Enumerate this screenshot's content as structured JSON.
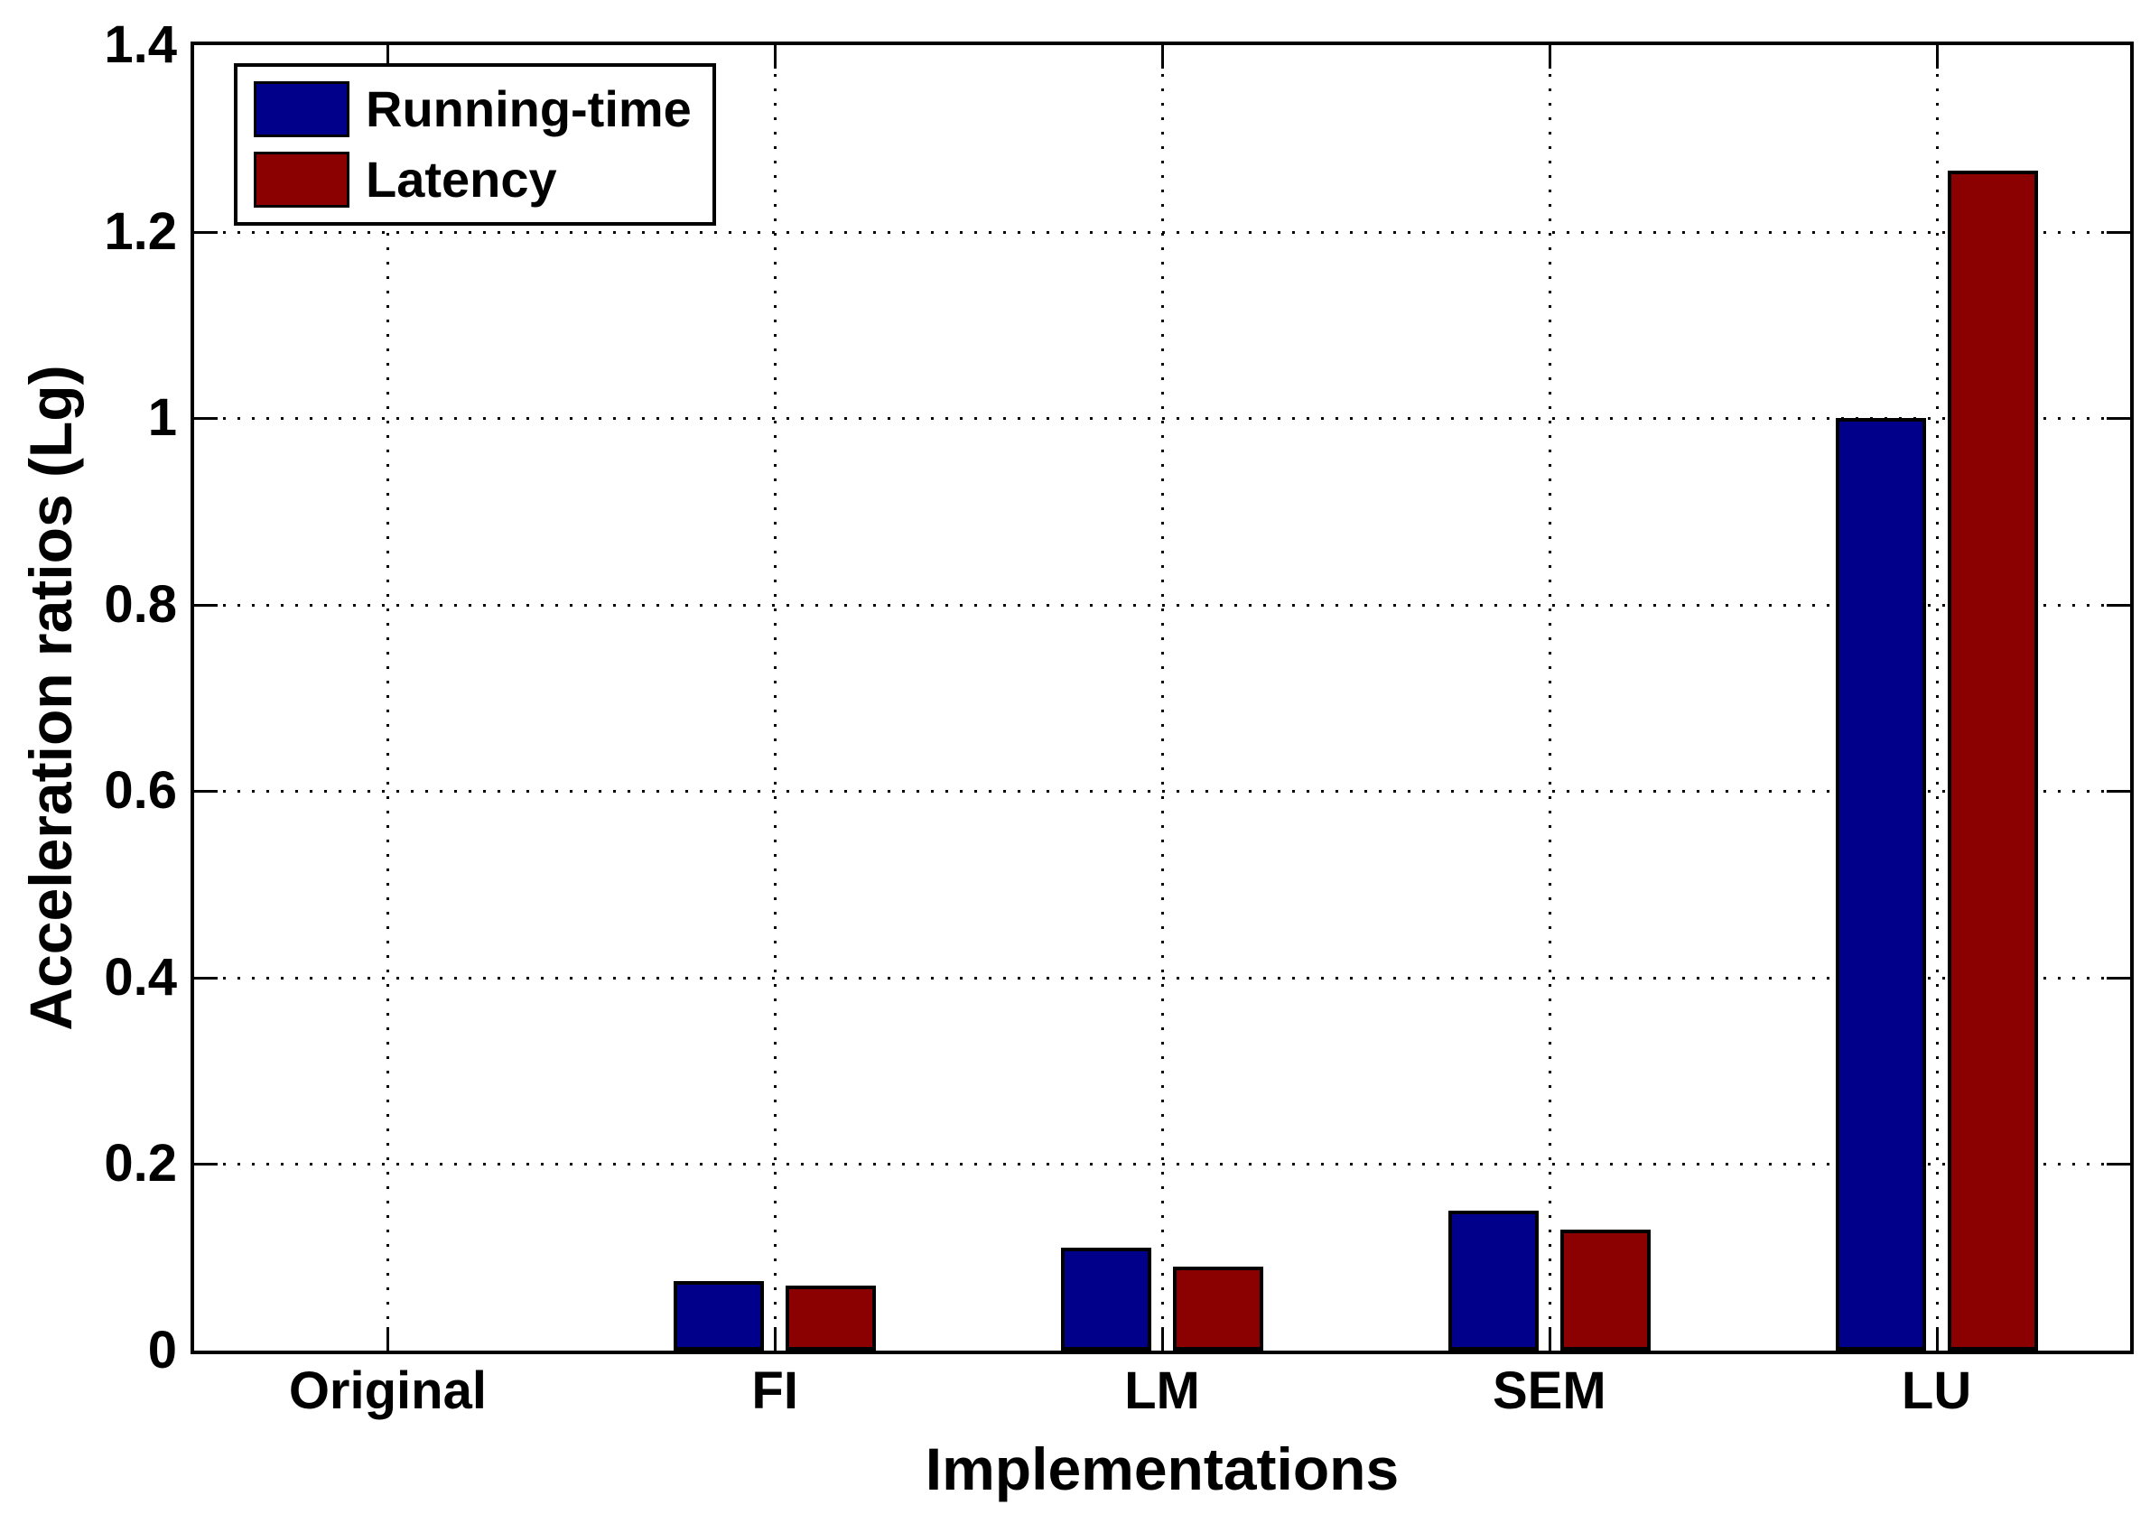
{
  "chart_data": {
    "type": "bar",
    "title": "",
    "xlabel": "Implementations",
    "ylabel": "Acceleration ratios (Lg)",
    "categories": [
      "Original",
      "FI",
      "LM",
      "SEM",
      "LU"
    ],
    "series": [
      {
        "name": "Running-time",
        "color": "#00008B",
        "values": [
          0,
          0.075,
          0.11,
          0.15,
          1.0
        ]
      },
      {
        "name": "Latency",
        "color": "#8B0000",
        "values": [
          0,
          0.07,
          0.09,
          0.13,
          1.265
        ]
      }
    ],
    "ylim": [
      0,
      1.4
    ],
    "yticks": [
      0,
      0.2,
      0.4,
      0.6,
      0.8,
      1,
      1.2,
      1.4
    ],
    "ytick_labels": [
      "0",
      "0.2",
      "0.4",
      "0.6",
      "0.8",
      "1",
      "1.2",
      "1.4"
    ],
    "grid": "dotted",
    "legend_position": "top-left",
    "axis_color": "#000000",
    "background_color": "#ffffff"
  }
}
